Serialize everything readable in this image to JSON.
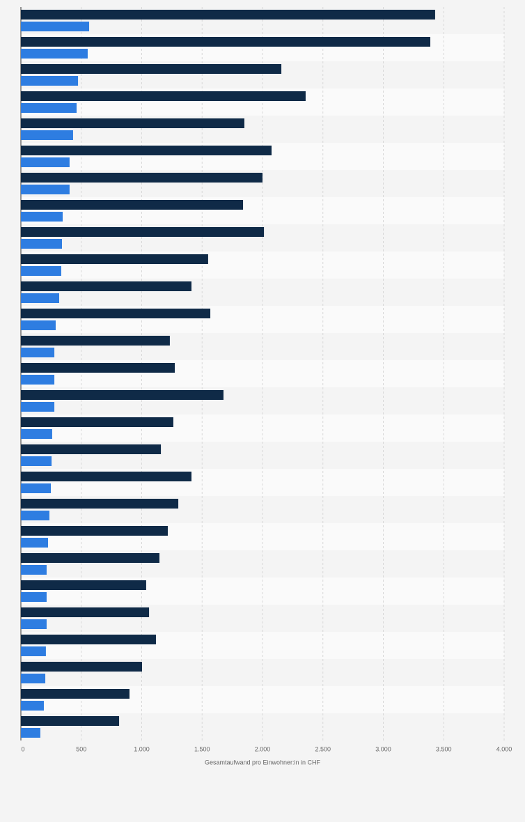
{
  "chart_data": {
    "type": "bar",
    "orientation": "horizontal",
    "xlabel": "Gesamtaufwand pro Einwohner:in in CHF",
    "categories": [
      null,
      null,
      null,
      null,
      null,
      null,
      null,
      null,
      null,
      null,
      null,
      null,
      null,
      null,
      null,
      null,
      null,
      null,
      null,
      null,
      null,
      null,
      null,
      null,
      null,
      null,
      null
    ],
    "series": [
      {
        "color": "#0f2a47",
        "values": [
          3429,
          3389,
          2156,
          2357,
          1850,
          2075,
          2000,
          1839,
          2012,
          1550,
          1412,
          1568,
          1233,
          1274,
          1677,
          1262,
          1159,
          1412,
          1303,
          1216,
          1147,
          1037,
          1061,
          1118,
          1003,
          899,
          813
        ]
      },
      {
        "color": "#2e7de1",
        "values": [
          565,
          553,
          473,
          461,
          432,
          403,
          403,
          346,
          340,
          334,
          317,
          288,
          277,
          277,
          277,
          259,
          254,
          248,
          236,
          225,
          213,
          213,
          213,
          207,
          202,
          190,
          161
        ]
      }
    ],
    "xlim": [
      0,
      4000
    ],
    "xticks": [
      0,
      500,
      {
        "value": 1000,
        "label": "1.000"
      },
      {
        "value": 1500,
        "label": "1.500"
      },
      {
        "value": 2000,
        "label": "2.000"
      },
      {
        "value": 2500,
        "label": "2.500"
      },
      {
        "value": 3000,
        "label": "3.000"
      },
      {
        "value": 3500,
        "label": "3.500"
      },
      {
        "value": 4000,
        "label": "4.000"
      }
    ],
    "grid": true
  }
}
